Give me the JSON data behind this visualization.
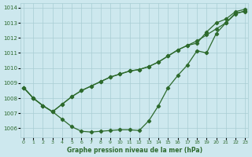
{
  "xlabel": "Graphe pression niveau de la mer (hPa)",
  "bg_color": "#cde8ee",
  "line_color": "#2d6a2d",
  "grid_color": "#a8cdd4",
  "ylim": [
    1005.4,
    1014.3
  ],
  "xlim": [
    -0.3,
    23.3
  ],
  "yticks": [
    1006,
    1007,
    1008,
    1009,
    1010,
    1011,
    1012,
    1013,
    1014
  ],
  "xticks": [
    0,
    1,
    2,
    3,
    4,
    5,
    6,
    7,
    8,
    9,
    10,
    11,
    12,
    13,
    14,
    15,
    16,
    17,
    18,
    19,
    20,
    21,
    22,
    23
  ],
  "line1": [
    1008.7,
    1008.0,
    1007.5,
    1007.1,
    1006.6,
    1006.1,
    1005.8,
    1005.75,
    1005.8,
    1005.85,
    1005.9,
    1005.9,
    1005.85,
    1006.5,
    1007.5,
    1008.7,
    1009.5,
    1010.2,
    1011.15,
    1011.0,
    1012.3,
    1013.0,
    1013.65,
    1013.75
  ],
  "line2": [
    1008.7,
    1008.0,
    1007.5,
    1007.1,
    1007.6,
    1008.1,
    1008.5,
    1008.8,
    1009.1,
    1009.4,
    1009.6,
    1009.8,
    1009.9,
    1010.1,
    1010.4,
    1010.8,
    1011.2,
    1011.5,
    1011.8,
    1012.2,
    1012.6,
    1013.0,
    1013.6,
    1013.8
  ],
  "line3": [
    1008.7,
    1008.0,
    1007.5,
    1007.1,
    1007.6,
    1008.1,
    1008.5,
    1008.8,
    1009.1,
    1009.4,
    1009.6,
    1009.8,
    1009.9,
    1010.1,
    1010.4,
    1010.8,
    1011.2,
    1011.5,
    1011.65,
    1012.4,
    1013.0,
    1013.25,
    1013.75,
    1013.9
  ]
}
